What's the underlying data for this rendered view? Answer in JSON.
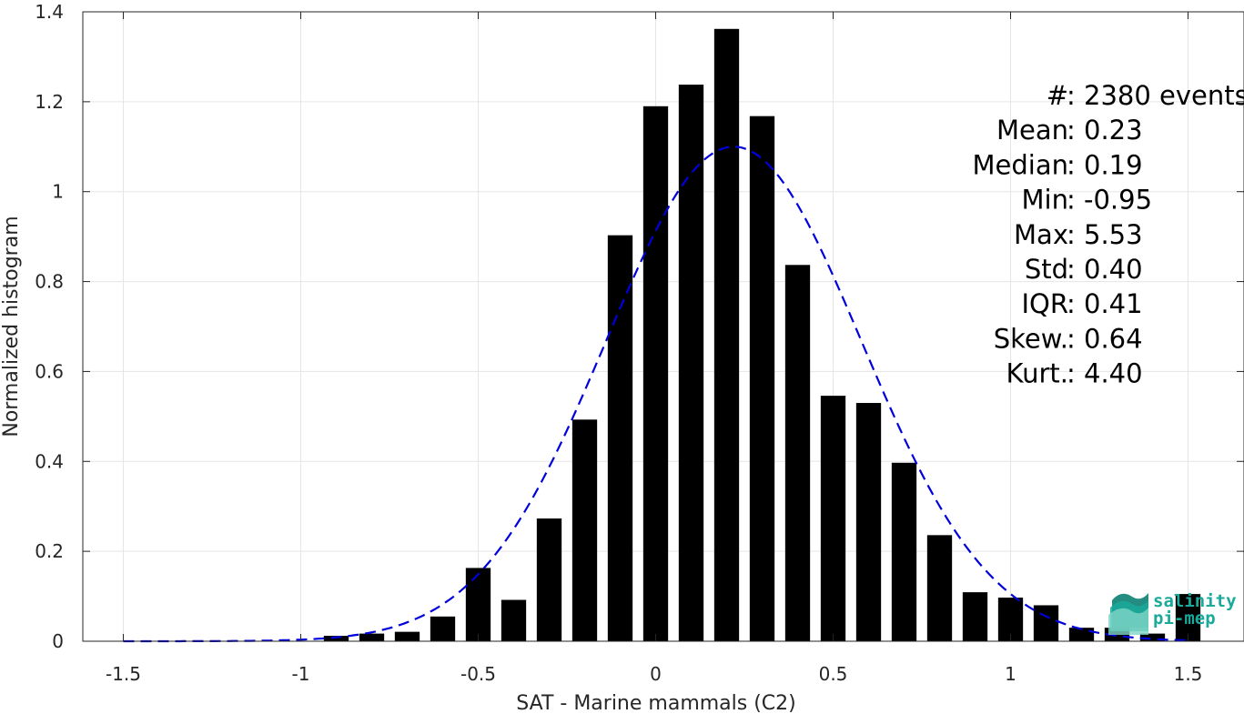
{
  "chart_data": {
    "type": "bar",
    "title": "",
    "xlabel": "SAT - Marine mammals (C2)",
    "ylabel": "Normalized histogram",
    "xlim": [
      -1.6,
      1.6
    ],
    "ylim": [
      0,
      1.4
    ],
    "xticks": [
      -1.5,
      -1,
      -0.5,
      0,
      0.5,
      1,
      1.5
    ],
    "xtick_labels": [
      "-1.5",
      "-1",
      "-0.5",
      "0",
      "0.5",
      "1",
      "1.5"
    ],
    "yticks": [
      0,
      0.2,
      0.4,
      0.6,
      0.8,
      1,
      1.2,
      1.4
    ],
    "ytick_labels": [
      "0",
      "0.2",
      "0.4",
      "0.6",
      "0.8",
      "1",
      "1.2",
      "1.4"
    ],
    "grid": true,
    "bar_color": "#000000",
    "bin_width": 0.1,
    "bar_width": 0.07,
    "x": [
      -0.9,
      -0.8,
      -0.7,
      -0.6,
      -0.5,
      -0.4,
      -0.3,
      -0.2,
      -0.1,
      0.0,
      0.1,
      0.2,
      0.3,
      0.4,
      0.5,
      0.6,
      0.7,
      0.8,
      0.9,
      1.0,
      1.1,
      1.2,
      1.3,
      1.4,
      1.5
    ],
    "values": [
      0.012,
      0.017,
      0.021,
      0.055,
      0.163,
      0.092,
      0.273,
      0.493,
      0.903,
      1.19,
      1.238,
      1.362,
      1.168,
      0.837,
      0.546,
      0.53,
      0.397,
      0.236,
      0.109,
      0.097,
      0.08,
      0.03,
      0.03,
      0.017,
      0.105
    ],
    "fit_curve": {
      "type": "gaussian",
      "style": "dashed",
      "color": "#0000dd",
      "mean": 0.22,
      "std": 0.36,
      "peak": 1.1,
      "x_range": [
        -1.5,
        1.5
      ]
    },
    "stats": [
      {
        "label": "#  ",
        "value": "2380 events"
      },
      {
        "label": "Mean",
        "value": "0.23"
      },
      {
        "label": "Median",
        "value": "0.19"
      },
      {
        "label": "Min",
        "value": "-0.95"
      },
      {
        "label": "Max",
        "value": "5.53"
      },
      {
        "label": "Std",
        "value": "0.40"
      },
      {
        "label": "IQR",
        "value": "0.41"
      },
      {
        "label": "Skew.",
        "value": "0.64"
      },
      {
        "label": "Kurt.",
        "value": "4.40"
      }
    ]
  },
  "logo": {
    "line1": "salinity",
    "line2": "pi-mep",
    "icon": "layered-wave-icon",
    "color": "#1aa99a"
  }
}
